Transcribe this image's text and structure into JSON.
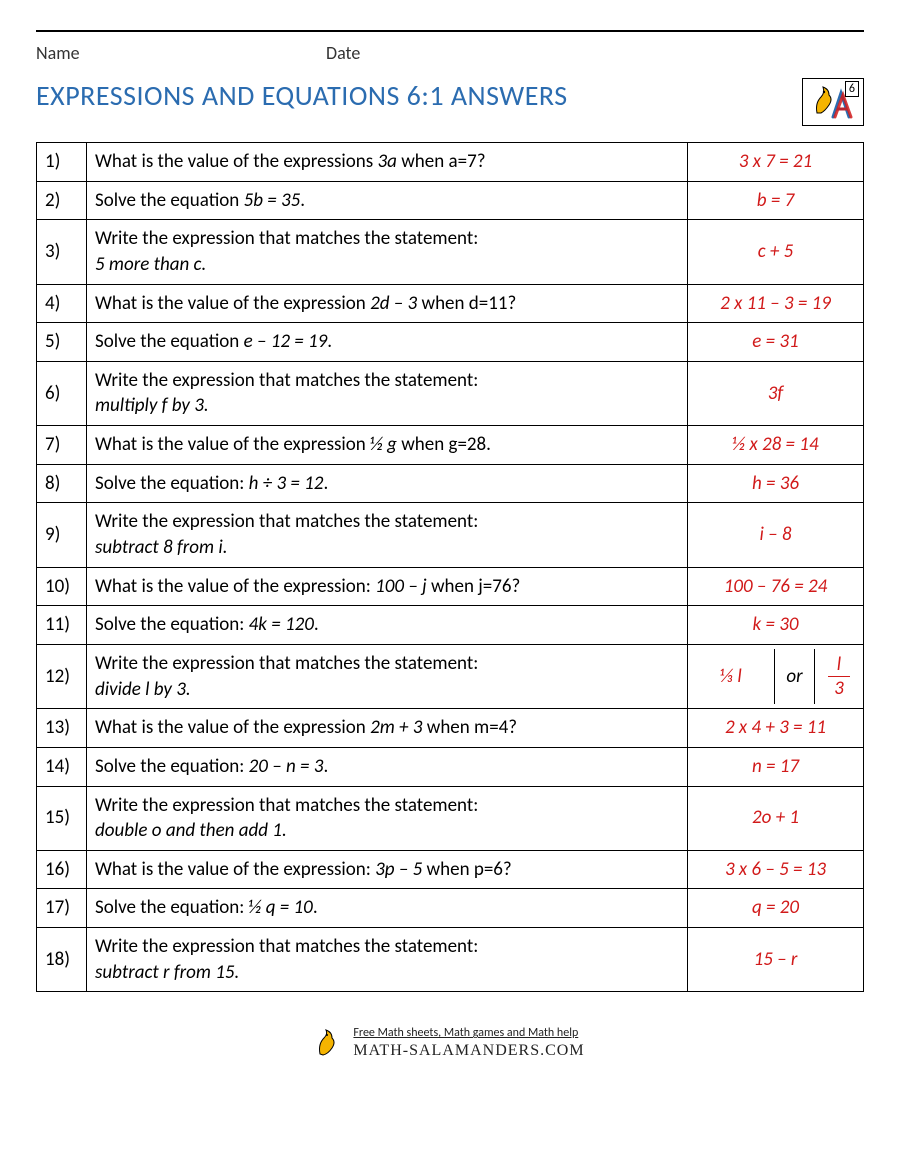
{
  "header": {
    "name_label": "Name",
    "date_label": "Date",
    "title": "EXPRESSIONS AND EQUATIONS 6:1 ANSWERS",
    "grade_badge": "6"
  },
  "colors": {
    "title": "#2b6cb0",
    "answer": "#d11a1a",
    "border": "#000000",
    "text": "#000000"
  },
  "rows": [
    {
      "n": "1)",
      "q": "What is the value of the expressions <span class='expr'>3a</span> when a=7?",
      "a": "3 x 7 = 21"
    },
    {
      "n": "2)",
      "q": "Solve the equation <span class='expr'>5b = 35</span>.",
      "a": "b = 7"
    },
    {
      "n": "3)",
      "q": "Write the expression that matches the statement:<br><span class='expr'>5 more than c.</span>",
      "a": "c + 5"
    },
    {
      "n": "4)",
      "q": "What is the value of the expression <span class='expr'>2d – 3</span> when d=11?",
      "a": "2 x 11 – 3 = 19"
    },
    {
      "n": "5)",
      "q": "Solve the equation <span class='expr'>e – 12 = 19</span>.",
      "a": "e = 31"
    },
    {
      "n": "6)",
      "q": "Write the expression that matches the statement:<br><span class='expr'>multiply f by 3.</span>",
      "a": "3f"
    },
    {
      "n": "7)",
      "q": "What is the value of the expression <span class='expr'>½ g</span> when g=28.",
      "a": "½ x 28 = 14"
    },
    {
      "n": "8)",
      "q": "Solve the equation: <span class='expr'>h ÷ 3 = 12</span>.",
      "a": "h = 36"
    },
    {
      "n": "9)",
      "q": "Write the expression that matches the statement:<br><span class='expr'>subtract 8 from i.</span>",
      "a": "i – 8"
    },
    {
      "n": "10)",
      "q": "What is the value of the expression: <span class='expr'>100 – j</span> when j=76?",
      "a": "100 – 76 = 24"
    },
    {
      "n": "11)",
      "q": "Solve the equation: <span class='expr'>4k = 120</span>.",
      "a": "k = 30"
    },
    {
      "n": "12)",
      "q": "Write the expression that matches the statement:<br><span class='expr'>divide l by 3.</span>",
      "a_split": {
        "seg1": "⅓ l",
        "seg2": "or",
        "seg3_top": "l",
        "seg3_bot": "3"
      }
    },
    {
      "n": "13)",
      "q": "What is the value of the expression <span class='expr'>2m + 3</span> when m=4?",
      "a": "2 x 4 + 3 = 11"
    },
    {
      "n": "14)",
      "q": "Solve the equation: <span class='expr'>20 – n = 3</span>.",
      "a": "n = 17"
    },
    {
      "n": "15)",
      "q": "Write the expression that matches the statement:<br><span class='expr'>double o and then add 1.</span>",
      "a": "2o + 1"
    },
    {
      "n": "16)",
      "q": "What is the value of the expression: <span class='expr'>3p – 5</span> when p=6?",
      "a": "3 x 6 – 5 = 13"
    },
    {
      "n": "17)",
      "q": "Solve the equation: <span class='expr'>½ q = 10</span>.",
      "a": "q = 20"
    },
    {
      "n": "18)",
      "q": "Write the expression that matches the statement:<br><span class='expr'>subtract r from 15.</span>",
      "a": "15 – r"
    }
  ],
  "footer": {
    "line1": "Free Math sheets, Math games and Math help",
    "line2": "MATH-SALAMANDERS.COM"
  }
}
